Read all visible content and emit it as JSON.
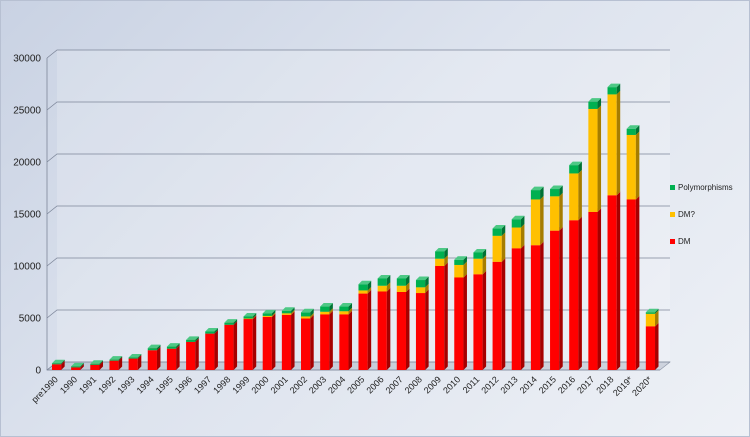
{
  "chart_data": {
    "type": "bar",
    "stacked": true,
    "categories": [
      "pre1990",
      "1990",
      "1991",
      "1992",
      "1993",
      "1994",
      "1995",
      "1996",
      "1997",
      "1998",
      "1999",
      "2000",
      "2001",
      "2002",
      "2003",
      "2004",
      "2005",
      "2006",
      "2007",
      "2008",
      "2009",
      "2010",
      "2011",
      "2012",
      "2013",
      "2014",
      "2015",
      "2016",
      "2017",
      "2018",
      "2019*",
      "2020*"
    ],
    "series": [
      {
        "name": "DM",
        "color": "#ff0000",
        "values": [
          550,
          250,
          500,
          900,
          1100,
          1900,
          2050,
          2700,
          3500,
          4350,
          4900,
          5100,
          5300,
          4950,
          5350,
          5350,
          7350,
          7550,
          7500,
          7400,
          10000,
          8900,
          9200,
          10400,
          11700,
          12000,
          13400,
          14400,
          15200,
          16800,
          16400,
          4200
        ]
      },
      {
        "name": "DM?",
        "color": "#ffc000",
        "values": [
          0,
          0,
          0,
          0,
          0,
          0,
          0,
          0,
          0,
          0,
          50,
          100,
          150,
          200,
          250,
          300,
          300,
          550,
          600,
          550,
          700,
          1200,
          1500,
          2500,
          2000,
          4400,
          3300,
          4500,
          9900,
          9700,
          6200,
          1200
        ]
      },
      {
        "name": "Polymorphisms",
        "color": "#00b050",
        "values": [
          100,
          100,
          100,
          100,
          100,
          200,
          200,
          200,
          200,
          200,
          200,
          250,
          250,
          400,
          500,
          450,
          600,
          700,
          700,
          700,
          700,
          500,
          600,
          700,
          800,
          900,
          700,
          800,
          700,
          700,
          600,
          150
        ]
      }
    ],
    "ylim": [
      0,
      30000
    ],
    "yticks": [
      0,
      5000,
      10000,
      15000,
      20000,
      25000,
      30000
    ],
    "grid": true,
    "legend_position": "right"
  }
}
